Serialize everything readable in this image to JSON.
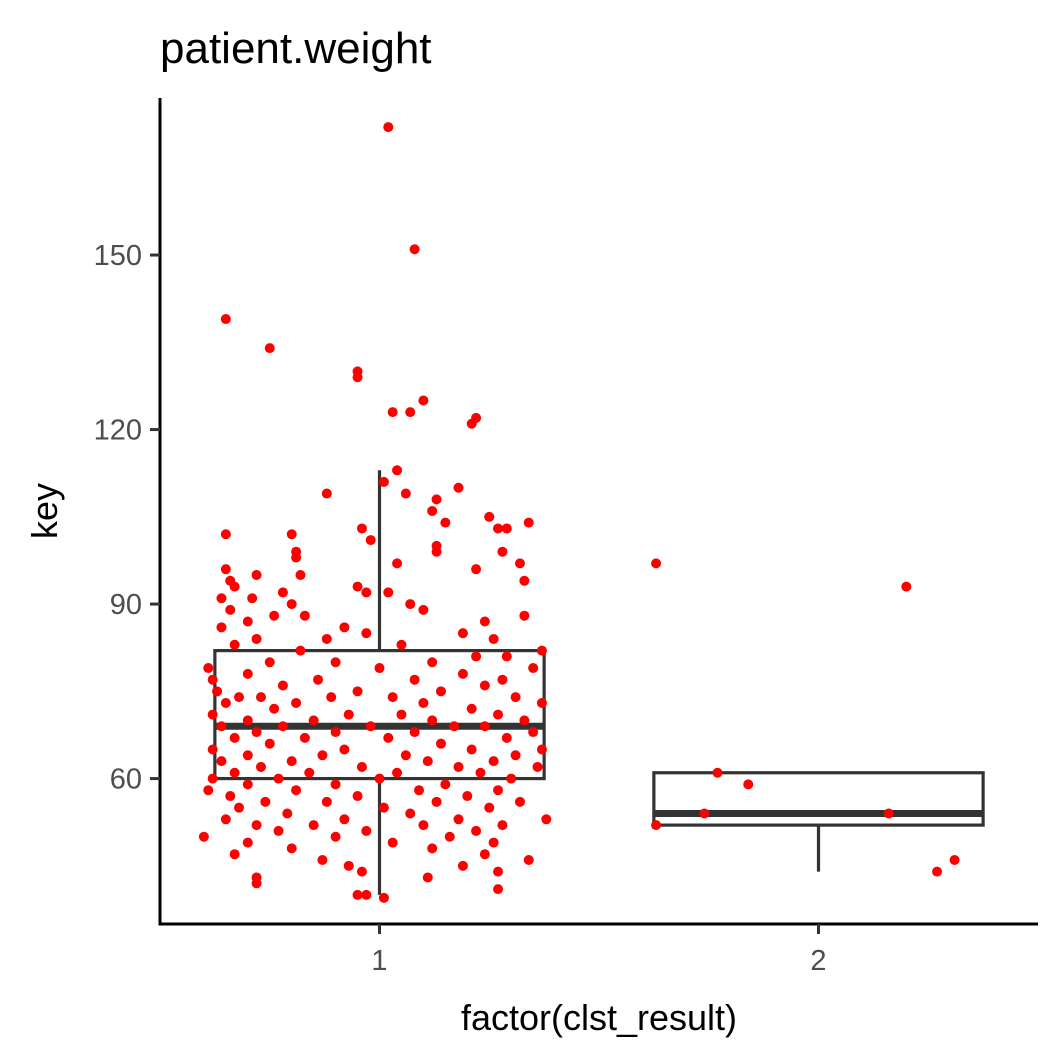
{
  "chart_data": {
    "type": "boxplot",
    "title": "patient.weight",
    "xlabel": "factor(clst_result)",
    "ylabel": "key",
    "ylim": [
      35,
      177
    ],
    "yticks": [
      60,
      90,
      120,
      150
    ],
    "categories": [
      "1",
      "2"
    ],
    "grid": false,
    "legend": "none",
    "colors": {
      "points": "#ff0000",
      "box": "#333333",
      "axis": "#000000"
    },
    "boxes": [
      {
        "category": "1",
        "whisker_low": 40,
        "q1": 60,
        "median": 69,
        "q3": 82,
        "whisker_high": 113
      },
      {
        "category": "2",
        "whisker_low": 44,
        "q1": 52,
        "median": 54,
        "q3": 61,
        "whisker_high": 61
      }
    ],
    "points": [
      {
        "category": "2",
        "jitter": -0.37,
        "y": 97
      },
      {
        "category": "2",
        "jitter": 0.2,
        "y": 93
      },
      {
        "category": "2",
        "jitter": -0.23,
        "y": 61
      },
      {
        "category": "2",
        "jitter": -0.16,
        "y": 59
      },
      {
        "category": "2",
        "jitter": -0.26,
        "y": 54
      },
      {
        "category": "2",
        "jitter": 0.16,
        "y": 54
      },
      {
        "category": "2",
        "jitter": -0.37,
        "y": 52
      },
      {
        "category": "2",
        "jitter": 0.31,
        "y": 46
      },
      {
        "category": "2",
        "jitter": 0.27,
        "y": 44
      },
      {
        "category": "1",
        "jitter": 0.02,
        "y": 172
      },
      {
        "category": "1",
        "jitter": 0.08,
        "y": 151
      },
      {
        "category": "1",
        "jitter": -0.35,
        "y": 139
      },
      {
        "category": "1",
        "jitter": -0.25,
        "y": 134
      },
      {
        "category": "1",
        "jitter": -0.05,
        "y": 130
      },
      {
        "category": "1",
        "jitter": -0.05,
        "y": 129
      },
      {
        "category": "1",
        "jitter": 0.1,
        "y": 125
      },
      {
        "category": "1",
        "jitter": 0.03,
        "y": 123
      },
      {
        "category": "1",
        "jitter": 0.07,
        "y": 123
      },
      {
        "category": "1",
        "jitter": 0.22,
        "y": 122
      },
      {
        "category": "1",
        "jitter": 0.21,
        "y": 121
      },
      {
        "category": "1",
        "jitter": 0.04,
        "y": 113
      },
      {
        "category": "1",
        "jitter": 0.01,
        "y": 111
      },
      {
        "category": "1",
        "jitter": 0.18,
        "y": 110
      },
      {
        "category": "1",
        "jitter": 0.06,
        "y": 109
      },
      {
        "category": "1",
        "jitter": -0.12,
        "y": 109
      },
      {
        "category": "1",
        "jitter": 0.13,
        "y": 108
      },
      {
        "category": "1",
        "jitter": 0.12,
        "y": 106
      },
      {
        "category": "1",
        "jitter": 0.25,
        "y": 105
      },
      {
        "category": "1",
        "jitter": 0.15,
        "y": 104
      },
      {
        "category": "1",
        "jitter": 0.27,
        "y": 103
      },
      {
        "category": "1",
        "jitter": 0.34,
        "y": 104
      },
      {
        "category": "1",
        "jitter": 0.29,
        "y": 103
      },
      {
        "category": "1",
        "jitter": -0.04,
        "y": 103
      },
      {
        "category": "1",
        "jitter": -0.02,
        "y": 101
      },
      {
        "category": "1",
        "jitter": -0.35,
        "y": 102
      },
      {
        "category": "1",
        "jitter": -0.2,
        "y": 102
      },
      {
        "category": "1",
        "jitter": 0.13,
        "y": 100
      },
      {
        "category": "1",
        "jitter": 0.13,
        "y": 99
      },
      {
        "category": "1",
        "jitter": 0.28,
        "y": 99
      },
      {
        "category": "1",
        "jitter": -0.19,
        "y": 99
      },
      {
        "category": "1",
        "jitter": -0.19,
        "y": 98
      },
      {
        "category": "1",
        "jitter": 0.32,
        "y": 97
      },
      {
        "category": "1",
        "jitter": 0.04,
        "y": 97
      },
      {
        "category": "1",
        "jitter": 0.22,
        "y": 96
      },
      {
        "category": "1",
        "jitter": -0.35,
        "y": 96
      },
      {
        "category": "1",
        "jitter": -0.28,
        "y": 95
      },
      {
        "category": "1",
        "jitter": -0.18,
        "y": 95
      },
      {
        "category": "1",
        "jitter": -0.34,
        "y": 94
      },
      {
        "category": "1",
        "jitter": 0.33,
        "y": 94
      },
      {
        "category": "1",
        "jitter": -0.33,
        "y": 93
      },
      {
        "category": "1",
        "jitter": -0.05,
        "y": 93
      },
      {
        "category": "1",
        "jitter": -0.22,
        "y": 92
      },
      {
        "category": "1",
        "jitter": -0.36,
        "y": 91
      },
      {
        "category": "1",
        "jitter": -0.03,
        "y": 92
      },
      {
        "category": "1",
        "jitter": 0.02,
        "y": 92
      },
      {
        "category": "1",
        "jitter": -0.29,
        "y": 91
      },
      {
        "category": "1",
        "jitter": -0.2,
        "y": 90
      },
      {
        "category": "1",
        "jitter": -0.34,
        "y": 89
      },
      {
        "category": "1",
        "jitter": 0.07,
        "y": 90
      },
      {
        "category": "1",
        "jitter": 0.1,
        "y": 89
      },
      {
        "category": "1",
        "jitter": -0.17,
        "y": 88
      },
      {
        "category": "1",
        "jitter": -0.24,
        "y": 88
      },
      {
        "category": "1",
        "jitter": 0.33,
        "y": 88
      },
      {
        "category": "1",
        "jitter": -0.3,
        "y": 87
      },
      {
        "category": "1",
        "jitter": -0.08,
        "y": 86
      },
      {
        "category": "1",
        "jitter": 0.24,
        "y": 87
      },
      {
        "category": "1",
        "jitter": -0.36,
        "y": 86
      },
      {
        "category": "1",
        "jitter": -0.03,
        "y": 85
      },
      {
        "category": "1",
        "jitter": -0.12,
        "y": 84
      },
      {
        "category": "1",
        "jitter": 0.19,
        "y": 85
      },
      {
        "category": "1",
        "jitter": -0.28,
        "y": 84
      },
      {
        "category": "1",
        "jitter": 0.26,
        "y": 84
      },
      {
        "category": "1",
        "jitter": -0.33,
        "y": 83
      },
      {
        "category": "1",
        "jitter": 0.05,
        "y": 83
      },
      {
        "category": "1",
        "jitter": 0.37,
        "y": 82
      },
      {
        "category": "1",
        "jitter": -0.18,
        "y": 82
      },
      {
        "category": "1",
        "jitter": 0.22,
        "y": 81
      },
      {
        "category": "1",
        "jitter": 0.29,
        "y": 81
      },
      {
        "category": "1",
        "jitter": -0.25,
        "y": 80
      },
      {
        "category": "1",
        "jitter": 0.12,
        "y": 80
      },
      {
        "category": "1",
        "jitter": -0.1,
        "y": 80
      },
      {
        "category": "1",
        "jitter": 0.35,
        "y": 79
      },
      {
        "category": "1",
        "jitter": -0.39,
        "y": 79
      },
      {
        "category": "1",
        "jitter": 0.0,
        "y": 79
      },
      {
        "category": "1",
        "jitter": -0.3,
        "y": 78
      },
      {
        "category": "1",
        "jitter": 0.19,
        "y": 78
      },
      {
        "category": "1",
        "jitter": -0.38,
        "y": 77
      },
      {
        "category": "1",
        "jitter": -0.14,
        "y": 77
      },
      {
        "category": "1",
        "jitter": 0.08,
        "y": 77
      },
      {
        "category": "1",
        "jitter": 0.28,
        "y": 77
      },
      {
        "category": "1",
        "jitter": -0.22,
        "y": 76
      },
      {
        "category": "1",
        "jitter": 0.24,
        "y": 76
      },
      {
        "category": "1",
        "jitter": -0.37,
        "y": 75
      },
      {
        "category": "1",
        "jitter": -0.05,
        "y": 75
      },
      {
        "category": "1",
        "jitter": 0.14,
        "y": 75
      },
      {
        "category": "1",
        "jitter": -0.32,
        "y": 74
      },
      {
        "category": "1",
        "jitter": -0.27,
        "y": 74
      },
      {
        "category": "1",
        "jitter": -0.11,
        "y": 74
      },
      {
        "category": "1",
        "jitter": 0.03,
        "y": 74
      },
      {
        "category": "1",
        "jitter": 0.31,
        "y": 74
      },
      {
        "category": "1",
        "jitter": -0.35,
        "y": 73
      },
      {
        "category": "1",
        "jitter": -0.19,
        "y": 73
      },
      {
        "category": "1",
        "jitter": 0.1,
        "y": 73
      },
      {
        "category": "1",
        "jitter": 0.37,
        "y": 73
      },
      {
        "category": "1",
        "jitter": -0.24,
        "y": 72
      },
      {
        "category": "1",
        "jitter": 0.21,
        "y": 72
      },
      {
        "category": "1",
        "jitter": -0.38,
        "y": 71
      },
      {
        "category": "1",
        "jitter": -0.07,
        "y": 71
      },
      {
        "category": "1",
        "jitter": 0.05,
        "y": 71
      },
      {
        "category": "1",
        "jitter": 0.27,
        "y": 71
      },
      {
        "category": "1",
        "jitter": -0.3,
        "y": 70
      },
      {
        "category": "1",
        "jitter": -0.15,
        "y": 70
      },
      {
        "category": "1",
        "jitter": 0.12,
        "y": 70
      },
      {
        "category": "1",
        "jitter": 0.33,
        "y": 70
      },
      {
        "category": "1",
        "jitter": -0.36,
        "y": 69
      },
      {
        "category": "1",
        "jitter": -0.22,
        "y": 69
      },
      {
        "category": "1",
        "jitter": -0.02,
        "y": 69
      },
      {
        "category": "1",
        "jitter": 0.17,
        "y": 69
      },
      {
        "category": "1",
        "jitter": 0.24,
        "y": 69
      },
      {
        "category": "1",
        "jitter": -0.28,
        "y": 68
      },
      {
        "category": "1",
        "jitter": -0.1,
        "y": 68
      },
      {
        "category": "1",
        "jitter": 0.08,
        "y": 68
      },
      {
        "category": "1",
        "jitter": 0.35,
        "y": 68
      },
      {
        "category": "1",
        "jitter": -0.33,
        "y": 67
      },
      {
        "category": "1",
        "jitter": -0.17,
        "y": 67
      },
      {
        "category": "1",
        "jitter": 0.02,
        "y": 67
      },
      {
        "category": "1",
        "jitter": 0.29,
        "y": 67
      },
      {
        "category": "1",
        "jitter": -0.25,
        "y": 66
      },
      {
        "category": "1",
        "jitter": 0.14,
        "y": 66
      },
      {
        "category": "1",
        "jitter": -0.38,
        "y": 65
      },
      {
        "category": "1",
        "jitter": -0.08,
        "y": 65
      },
      {
        "category": "1",
        "jitter": 0.21,
        "y": 65
      },
      {
        "category": "1",
        "jitter": 0.37,
        "y": 65
      },
      {
        "category": "1",
        "jitter": -0.3,
        "y": 64
      },
      {
        "category": "1",
        "jitter": -0.13,
        "y": 64
      },
      {
        "category": "1",
        "jitter": 0.06,
        "y": 64
      },
      {
        "category": "1",
        "jitter": 0.31,
        "y": 64
      },
      {
        "category": "1",
        "jitter": -0.36,
        "y": 63
      },
      {
        "category": "1",
        "jitter": -0.2,
        "y": 63
      },
      {
        "category": "1",
        "jitter": 0.11,
        "y": 63
      },
      {
        "category": "1",
        "jitter": 0.26,
        "y": 63
      },
      {
        "category": "1",
        "jitter": -0.27,
        "y": 62
      },
      {
        "category": "1",
        "jitter": -0.04,
        "y": 62
      },
      {
        "category": "1",
        "jitter": 0.18,
        "y": 62
      },
      {
        "category": "1",
        "jitter": 0.36,
        "y": 62
      },
      {
        "category": "1",
        "jitter": -0.33,
        "y": 61
      },
      {
        "category": "1",
        "jitter": -0.16,
        "y": 61
      },
      {
        "category": "1",
        "jitter": 0.04,
        "y": 61
      },
      {
        "category": "1",
        "jitter": 0.23,
        "y": 61
      },
      {
        "category": "1",
        "jitter": -0.38,
        "y": 60
      },
      {
        "category": "1",
        "jitter": -0.23,
        "y": 60
      },
      {
        "category": "1",
        "jitter": 0.0,
        "y": 60
      },
      {
        "category": "1",
        "jitter": 0.3,
        "y": 60
      },
      {
        "category": "1",
        "jitter": -0.3,
        "y": 59
      },
      {
        "category": "1",
        "jitter": -0.1,
        "y": 59
      },
      {
        "category": "1",
        "jitter": 0.15,
        "y": 59
      },
      {
        "category": "1",
        "jitter": -0.39,
        "y": 58
      },
      {
        "category": "1",
        "jitter": -0.19,
        "y": 58
      },
      {
        "category": "1",
        "jitter": 0.09,
        "y": 58
      },
      {
        "category": "1",
        "jitter": 0.27,
        "y": 58
      },
      {
        "category": "1",
        "jitter": -0.34,
        "y": 57
      },
      {
        "category": "1",
        "jitter": -0.05,
        "y": 57
      },
      {
        "category": "1",
        "jitter": 0.2,
        "y": 57
      },
      {
        "category": "1",
        "jitter": -0.26,
        "y": 56
      },
      {
        "category": "1",
        "jitter": -0.12,
        "y": 56
      },
      {
        "category": "1",
        "jitter": 0.13,
        "y": 56
      },
      {
        "category": "1",
        "jitter": 0.32,
        "y": 56
      },
      {
        "category": "1",
        "jitter": -0.32,
        "y": 55
      },
      {
        "category": "1",
        "jitter": 0.01,
        "y": 55
      },
      {
        "category": "1",
        "jitter": 0.25,
        "y": 55
      },
      {
        "category": "1",
        "jitter": -0.21,
        "y": 54
      },
      {
        "category": "1",
        "jitter": 0.07,
        "y": 54
      },
      {
        "category": "1",
        "jitter": -0.35,
        "y": 53
      },
      {
        "category": "1",
        "jitter": -0.08,
        "y": 53
      },
      {
        "category": "1",
        "jitter": 0.18,
        "y": 53
      },
      {
        "category": "1",
        "jitter": 0.38,
        "y": 53
      },
      {
        "category": "1",
        "jitter": -0.28,
        "y": 52
      },
      {
        "category": "1",
        "jitter": -0.15,
        "y": 52
      },
      {
        "category": "1",
        "jitter": 0.1,
        "y": 52
      },
      {
        "category": "1",
        "jitter": 0.28,
        "y": 52
      },
      {
        "category": "1",
        "jitter": -0.23,
        "y": 51
      },
      {
        "category": "1",
        "jitter": -0.03,
        "y": 51
      },
      {
        "category": "1",
        "jitter": 0.22,
        "y": 51
      },
      {
        "category": "1",
        "jitter": -0.4,
        "y": 50
      },
      {
        "category": "1",
        "jitter": -0.1,
        "y": 50
      },
      {
        "category": "1",
        "jitter": 0.16,
        "y": 50
      },
      {
        "category": "1",
        "jitter": -0.3,
        "y": 49
      },
      {
        "category": "1",
        "jitter": 0.03,
        "y": 49
      },
      {
        "category": "1",
        "jitter": 0.26,
        "y": 49
      },
      {
        "category": "1",
        "jitter": -0.2,
        "y": 48
      },
      {
        "category": "1",
        "jitter": 0.12,
        "y": 48
      },
      {
        "category": "1",
        "jitter": -0.33,
        "y": 47
      },
      {
        "category": "1",
        "jitter": 0.24,
        "y": 47
      },
      {
        "category": "1",
        "jitter": -0.13,
        "y": 46
      },
      {
        "category": "1",
        "jitter": 0.34,
        "y": 46
      },
      {
        "category": "1",
        "jitter": -0.07,
        "y": 45
      },
      {
        "category": "1",
        "jitter": 0.19,
        "y": 45
      },
      {
        "category": "1",
        "jitter": -0.04,
        "y": 44
      },
      {
        "category": "1",
        "jitter": 0.27,
        "y": 44
      },
      {
        "category": "1",
        "jitter": -0.28,
        "y": 43
      },
      {
        "category": "1",
        "jitter": 0.11,
        "y": 43
      },
      {
        "category": "1",
        "jitter": -0.28,
        "y": 42
      },
      {
        "category": "1",
        "jitter": 0.27,
        "y": 41
      },
      {
        "category": "1",
        "jitter": -0.05,
        "y": 40
      },
      {
        "category": "1",
        "jitter": -0.03,
        "y": 40
      },
      {
        "category": "1",
        "jitter": 0.01,
        "y": 39.5
      }
    ]
  }
}
